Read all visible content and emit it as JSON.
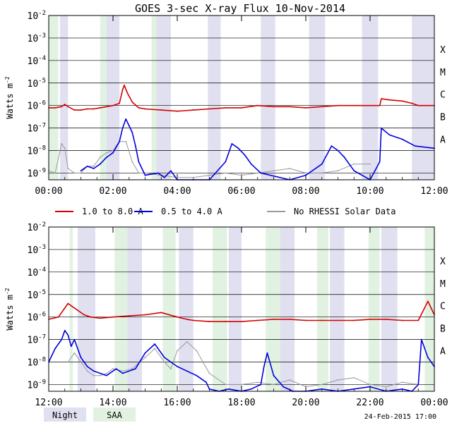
{
  "title": "GOES 3-sec X-ray Flux   10-Nov-2014",
  "ylabel_main": "Watts m",
  "ylabel_sup": "-2",
  "footer_date": "24-Feb-2015 17:00",
  "colors": {
    "long": "#d40000",
    "short": "#0000e0",
    "norhessi": "#999999",
    "night": "#e0e0f0",
    "saa": "#e2f2e2",
    "grid": "#000000"
  },
  "legend": [
    {
      "label": "1.0 to 8.0 A",
      "color": "#d40000"
    },
    {
      "label": "0.5 to 4.0 A",
      "color": "#0000e0"
    },
    {
      "label": "No RHESSI Solar Data",
      "color": "#999999"
    }
  ],
  "bottom_legend": [
    {
      "label": "Night",
      "color": "#e0e0f0"
    },
    {
      "label": "SAA",
      "color": "#e2f2e2"
    }
  ],
  "chart_data": [
    {
      "type": "line",
      "panel": "top",
      "xlabel": "",
      "ylabel": "Watts m-2",
      "xlim": [
        0,
        12
      ],
      "ylim_log10": [
        -9.3,
        -2
      ],
      "y_ticks": [
        {
          "exp": -2,
          "label": "10",
          "sup": "-2"
        },
        {
          "exp": -3,
          "label": "10",
          "sup": "-3"
        },
        {
          "exp": -4,
          "label": "10",
          "sup": "-4"
        },
        {
          "exp": -5,
          "label": "10",
          "sup": "-5"
        },
        {
          "exp": -6,
          "label": "10",
          "sup": "-6"
        },
        {
          "exp": -7,
          "label": "10",
          "sup": "-7"
        },
        {
          "exp": -8,
          "label": "10",
          "sup": "-8"
        },
        {
          "exp": -9,
          "label": "10",
          "sup": "-9"
        }
      ],
      "class_labels": [
        {
          "exp": -3.5,
          "label": "X"
        },
        {
          "exp": -4.5,
          "label": "M"
        },
        {
          "exp": -5.5,
          "label": "C"
        },
        {
          "exp": -6.5,
          "label": "B"
        },
        {
          "exp": -7.5,
          "label": "A"
        }
      ],
      "x_ticks": [
        {
          "x": 0,
          "label": "00:00"
        },
        {
          "x": 2,
          "label": "02:00"
        },
        {
          "x": 4,
          "label": "04:00"
        },
        {
          "x": 6,
          "label": "06:00"
        },
        {
          "x": 8,
          "label": "08:00"
        },
        {
          "x": 10,
          "label": "10:00"
        },
        {
          "x": 12,
          "label": "12:00"
        }
      ],
      "night": [
        [
          0.35,
          0.6
        ],
        [
          1.8,
          2.2
        ],
        [
          3.35,
          3.8
        ],
        [
          4.95,
          5.35
        ],
        [
          6.6,
          7.05
        ],
        [
          8.1,
          8.6
        ],
        [
          9.75,
          10.25
        ],
        [
          11.3,
          12
        ]
      ],
      "saa": [
        [
          0.0,
          0.3
        ],
        [
          1.6,
          1.8
        ],
        [
          3.2,
          3.35
        ]
      ],
      "series": [
        {
          "name": "1.0 to 8.0 A",
          "color": "#d40000",
          "x": [
            0,
            0.2,
            0.4,
            0.5,
            0.6,
            0.8,
            1.0,
            1.2,
            1.4,
            1.6,
            1.8,
            2.0,
            2.2,
            2.3,
            2.35,
            2.45,
            2.6,
            2.8,
            3.0,
            3.5,
            4.0,
            4.5,
            5.0,
            5.5,
            6.0,
            6.5,
            7.0,
            7.5,
            8.0,
            8.5,
            9.0,
            9.5,
            10.0,
            10.3,
            10.35,
            10.6,
            11.0,
            11.3,
            11.5,
            12
          ],
          "y": [
            -6.1,
            -6.1,
            -6.05,
            -5.95,
            -6.05,
            -6.2,
            -6.2,
            -6.15,
            -6.15,
            -6.1,
            -6.05,
            -6.0,
            -5.9,
            -5.3,
            -5.1,
            -5.45,
            -5.85,
            -6.1,
            -6.15,
            -6.2,
            -6.25,
            -6.2,
            -6.15,
            -6.1,
            -6.1,
            -6.0,
            -6.05,
            -6.05,
            -6.1,
            -6.05,
            -6.0,
            -6.0,
            -6.0,
            -6.0,
            -5.7,
            -5.75,
            -5.8,
            -5.9,
            -6.0,
            -6.0
          ]
        },
        {
          "name": "0.5 to 4.0 A",
          "color": "#0000e0",
          "x": [
            1.0,
            1.2,
            1.4,
            1.6,
            1.8,
            2.0,
            2.2,
            2.3,
            2.4,
            2.5,
            2.6,
            2.7,
            2.8,
            3.0,
            3.4,
            3.6,
            3.8,
            4.0,
            4.5,
            5.0,
            5.5,
            5.7,
            5.9,
            6.1,
            6.3,
            6.6,
            7.5,
            8.0,
            8.5,
            8.8,
            9.0,
            9.2,
            9.5,
            10.0,
            10.3,
            10.35,
            10.6,
            11.0,
            11.4,
            12
          ],
          "y": [
            -8.9,
            -8.7,
            -8.8,
            -8.6,
            -8.3,
            -8.1,
            -7.6,
            -7.0,
            -6.6,
            -6.9,
            -7.2,
            -7.8,
            -8.5,
            -9.1,
            -9.0,
            -9.2,
            -8.9,
            -9.3,
            -9.3,
            -9.3,
            -8.5,
            -7.7,
            -7.9,
            -8.2,
            -8.6,
            -9.0,
            -9.3,
            -9.1,
            -8.6,
            -7.8,
            -8.0,
            -8.3,
            -8.9,
            -9.3,
            -8.5,
            -7.0,
            -7.3,
            -7.5,
            -7.8,
            -7.9
          ]
        },
        {
          "name": "No RHESSI Solar Data",
          "color": "#999999",
          "x": [
            0,
            0.2,
            0.4,
            0.5,
            0.6,
            0.8,
            1.0,
            1.2,
            1.4,
            1.6,
            1.8,
            2.0,
            2.2,
            2.4,
            2.6,
            2.8,
            3.0,
            3.5,
            4.0,
            4.5,
            5.0,
            5.5,
            6.0,
            6.5,
            7.0,
            7.5,
            8.0,
            8.5,
            9.0,
            9.5,
            10.0
          ],
          "y": [
            -8.9,
            -9.0,
            -7.7,
            -7.9,
            -8.8,
            -9.0,
            -9.0,
            -8.7,
            -8.7,
            -8.3,
            -8.1,
            -8.0,
            -7.6,
            -7.6,
            -8.5,
            -9.0,
            -9.0,
            -9.1,
            -9.2,
            -9.2,
            -9.1,
            -9.0,
            -9.1,
            -9.0,
            -8.9,
            -8.8,
            -9.0,
            -9.0,
            -8.9,
            -8.6,
            -8.6
          ]
        }
      ]
    },
    {
      "type": "line",
      "panel": "bottom",
      "xlabel": "",
      "ylabel": "Watts m-2",
      "xlim": [
        12,
        24
      ],
      "ylim_log10": [
        -9.3,
        -2
      ],
      "y_ticks": [
        {
          "exp": -2,
          "label": "10",
          "sup": "-2"
        },
        {
          "exp": -3,
          "label": "10",
          "sup": "-3"
        },
        {
          "exp": -4,
          "label": "10",
          "sup": "-4"
        },
        {
          "exp": -5,
          "label": "10",
          "sup": "-5"
        },
        {
          "exp": -6,
          "label": "10",
          "sup": "-6"
        },
        {
          "exp": -7,
          "label": "10",
          "sup": "-7"
        },
        {
          "exp": -8,
          "label": "10",
          "sup": "-8"
        },
        {
          "exp": -9,
          "label": "10",
          "sup": "-9"
        }
      ],
      "class_labels": [
        {
          "exp": -3.5,
          "label": "X"
        },
        {
          "exp": -4.5,
          "label": "M"
        },
        {
          "exp": -5.5,
          "label": "C"
        },
        {
          "exp": -6.5,
          "label": "B"
        },
        {
          "exp": -7.5,
          "label": "A"
        }
      ],
      "x_ticks": [
        {
          "x": 12,
          "label": "12:00"
        },
        {
          "x": 14,
          "label": "14:00"
        },
        {
          "x": 16,
          "label": "16:00"
        },
        {
          "x": 18,
          "label": "18:00"
        },
        {
          "x": 20,
          "label": "20:00"
        },
        {
          "x": 22,
          "label": "22:00"
        },
        {
          "x": 24,
          "label": "00:00"
        }
      ],
      "night": [
        [
          12.9,
          13.45
        ],
        [
          14.45,
          14.9
        ],
        [
          16.05,
          16.5
        ],
        [
          17.6,
          18.0
        ],
        [
          19.2,
          19.65
        ],
        [
          20.75,
          21.2
        ],
        [
          22.35,
          22.85
        ]
      ],
      "saa": [
        [
          12.65,
          12.75
        ],
        [
          14.05,
          14.45
        ],
        [
          15.55,
          15.95
        ],
        [
          17.1,
          17.55
        ],
        [
          18.75,
          19.2
        ],
        [
          20.35,
          20.7
        ],
        [
          21.95,
          22.3
        ],
        [
          23.7,
          24.0
        ]
      ],
      "series": [
        {
          "name": "1.0 to 8.0 A",
          "color": "#d40000",
          "x": [
            12,
            12.3,
            12.5,
            12.6,
            12.7,
            12.9,
            13.1,
            13.3,
            13.6,
            14.0,
            14.5,
            15.0,
            15.5,
            16.0,
            16.3,
            16.5,
            17.0,
            17.5,
            18.0,
            18.5,
            19.0,
            19.5,
            20.0,
            20.5,
            21.0,
            21.5,
            22.0,
            22.5,
            23.0,
            23.5,
            23.8,
            23.9,
            24.0
          ],
          "y": [
            -6.1,
            -6.0,
            -5.6,
            -5.4,
            -5.5,
            -5.7,
            -5.9,
            -6.0,
            -6.05,
            -6.0,
            -5.95,
            -5.9,
            -5.8,
            -6.0,
            -6.1,
            -6.15,
            -6.2,
            -6.2,
            -6.2,
            -6.15,
            -6.1,
            -6.1,
            -6.15,
            -6.15,
            -6.15,
            -6.15,
            -6.1,
            -6.1,
            -6.15,
            -6.15,
            -5.3,
            -5.6,
            -5.9
          ]
        },
        {
          "name": "0.5 to 4.0 A",
          "color": "#0000e0",
          "x": [
            12,
            12.2,
            12.4,
            12.5,
            12.6,
            12.7,
            12.8,
            13.0,
            13.2,
            13.4,
            13.8,
            14.1,
            14.3,
            14.7,
            15.0,
            15.3,
            15.6,
            16.0,
            16.3,
            16.6,
            16.9,
            17.0,
            17.3,
            17.6,
            18.0,
            18.3,
            18.6,
            18.7,
            18.8,
            19.0,
            19.3,
            19.6,
            20.0,
            20.5,
            21.0,
            21.5,
            22.0,
            22.5,
            23.0,
            23.3,
            23.5,
            23.6,
            23.8,
            24.0
          ],
          "y": [
            -8.0,
            -7.4,
            -7.0,
            -6.6,
            -6.8,
            -7.3,
            -7.0,
            -7.8,
            -8.2,
            -8.4,
            -8.6,
            -8.3,
            -8.5,
            -8.3,
            -7.6,
            -7.2,
            -7.8,
            -8.2,
            -8.4,
            -8.6,
            -8.9,
            -9.2,
            -9.3,
            -9.2,
            -9.3,
            -9.2,
            -9.0,
            -8.2,
            -7.6,
            -8.6,
            -9.1,
            -9.3,
            -9.3,
            -9.2,
            -9.3,
            -9.2,
            -9.1,
            -9.3,
            -9.2,
            -9.3,
            -9.0,
            -7.0,
            -7.8,
            -8.2
          ]
        },
        {
          "name": "No RHESSI Solar Data",
          "color": "#999999",
          "x": [
            12.6,
            12.8,
            13.0,
            13.2,
            13.4,
            13.6,
            13.8,
            14.0,
            14.3,
            14.6,
            15.0,
            15.3,
            15.6,
            15.8,
            16.0,
            16.3,
            16.6,
            17.0,
            17.5,
            18.0,
            18.5,
            19.0,
            19.5,
            20.0,
            20.5,
            21.0,
            21.5,
            22.0,
            22.5,
            23.0,
            23.5
          ],
          "y": [
            -8.0,
            -7.6,
            -8.0,
            -8.4,
            -8.6,
            -8.6,
            -8.5,
            -8.3,
            -8.4,
            -8.3,
            -7.8,
            -7.4,
            -8.0,
            -8.3,
            -7.5,
            -7.1,
            -7.5,
            -8.5,
            -9.0,
            -9.0,
            -8.9,
            -9.0,
            -8.8,
            -9.1,
            -9.0,
            -8.8,
            -8.7,
            -9.0,
            -9.1,
            -8.9,
            -9.0
          ]
        }
      ]
    }
  ]
}
